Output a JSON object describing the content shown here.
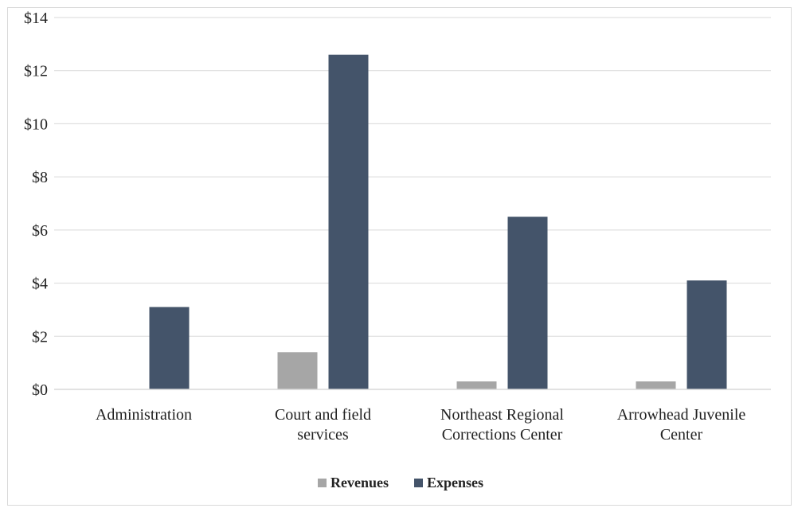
{
  "chart_data": {
    "type": "bar",
    "categories": [
      [
        "Administration"
      ],
      [
        "Court and field",
        "services"
      ],
      [
        "Northeast Regional",
        "Corrections Center"
      ],
      [
        "Arrowhead Juvenile",
        "Center"
      ]
    ],
    "series": [
      {
        "name": "Revenues",
        "values": [
          0,
          1.4,
          0.3,
          0.3
        ],
        "color": "#a6a6a6"
      },
      {
        "name": "Expenses",
        "values": [
          3.1,
          12.6,
          6.5,
          4.1
        ],
        "color": "#44546a"
      }
    ],
    "ylim": [
      0,
      14
    ],
    "yticks": [
      "$0",
      "$2",
      "$4",
      "$6",
      "$8",
      "$10",
      "$12",
      "$14"
    ],
    "ytick_values": [
      0,
      2,
      4,
      6,
      8,
      10,
      12,
      14
    ],
    "grid": true,
    "legend_position": "bottom",
    "gridline_color": "#d9d9d9"
  }
}
